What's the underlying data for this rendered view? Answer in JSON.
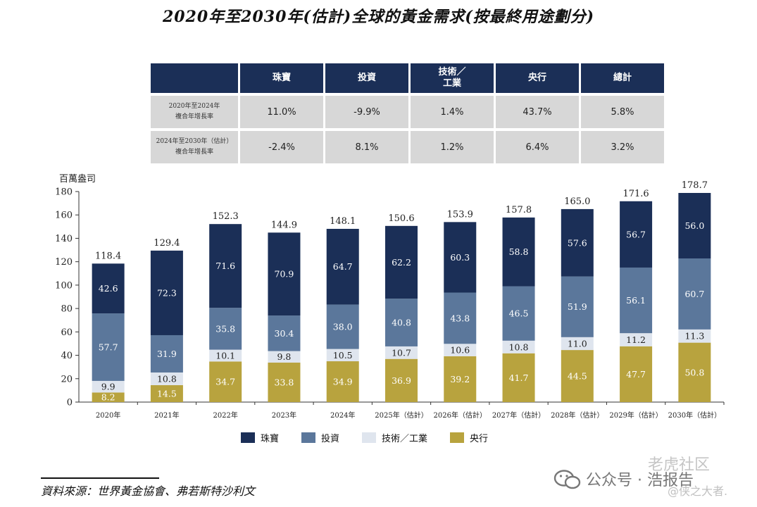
{
  "title": "2020年至2030年(估計)全球的黃金需求(按最終用途劃分)",
  "cagr_table": {
    "headers": [
      "珠寶",
      "投資",
      "技術／\n工業",
      "央行",
      "總計"
    ],
    "rows": [
      {
        "label_line1": "2020年至2024年",
        "label_line2": "複合年增長率",
        "values": [
          "11.0%",
          "-9.9%",
          "1.4%",
          "43.7%",
          "5.8%"
        ]
      },
      {
        "label_line1": "2024年至2030年（估計）",
        "label_line2": "複合年增長率",
        "values": [
          "-2.4%",
          "8.1%",
          "1.2%",
          "6.4%",
          "3.2%"
        ]
      }
    ]
  },
  "legend": [
    "珠寶",
    "投資",
    "技術／工業",
    "央行"
  ],
  "source": "資料來源：世界黃金協會、弗若斯特沙利文",
  "watermark": {
    "line1": "老虎社区",
    "line2": "公众号 · 浩报告",
    "line3": "@侠之大者."
  },
  "chart_data": {
    "type": "bar",
    "stacked": true,
    "ylabel": "百萬盎司",
    "ylim": [
      0,
      180
    ],
    "yticks": [
      0,
      20,
      40,
      60,
      80,
      100,
      120,
      140,
      160,
      180
    ],
    "categories": [
      "2020年",
      "2021年",
      "2022年",
      "2023年",
      "2024年",
      "2025年（估計）",
      "2026年（估計）",
      "2027年（估計）",
      "2028年（估計）",
      "2029年（估計）",
      "2030年（估計）"
    ],
    "totals": [
      118.4,
      129.4,
      152.3,
      144.9,
      148.1,
      150.6,
      153.9,
      157.8,
      165.0,
      171.6,
      178.7
    ],
    "series": [
      {
        "name": "央行",
        "color": "#b8a33e",
        "label_color": "#ffffff",
        "values": [
          8.2,
          14.5,
          34.7,
          33.8,
          34.9,
          36.9,
          39.2,
          41.7,
          44.5,
          47.7,
          50.8
        ]
      },
      {
        "name": "技術／工業",
        "color": "#dfe5ee",
        "label_color": "#222222",
        "values": [
          9.9,
          10.8,
          10.1,
          9.8,
          10.5,
          10.7,
          10.6,
          10.8,
          11.0,
          11.2,
          11.3
        ]
      },
      {
        "name": "投資",
        "color": "#5b779b",
        "label_color": "#ffffff",
        "values": [
          57.7,
          31.9,
          35.8,
          30.4,
          38.0,
          40.8,
          43.8,
          46.5,
          51.9,
          56.1,
          60.7
        ]
      },
      {
        "name": "珠寶",
        "color": "#1b2f57",
        "label_color": "#ffffff",
        "values": [
          42.6,
          72.3,
          71.6,
          70.9,
          64.7,
          62.2,
          60.3,
          58.8,
          57.6,
          56.7,
          56.0
        ]
      }
    ]
  }
}
